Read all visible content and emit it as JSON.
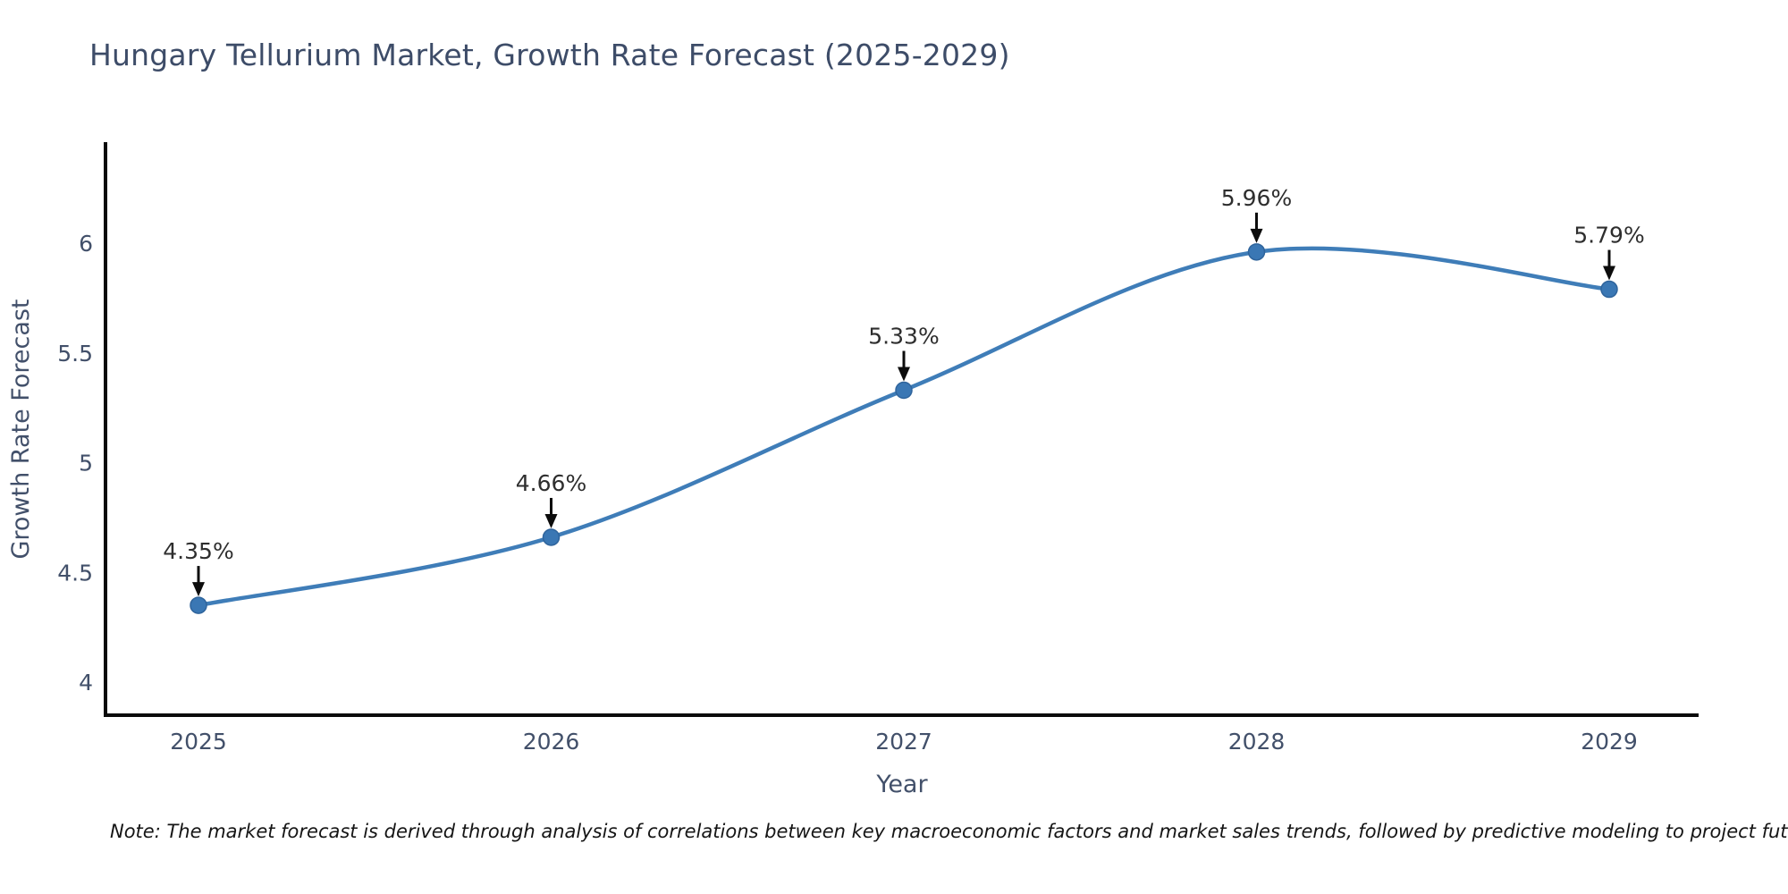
{
  "title": "Hungary Tellurium Market, Growth Rate Forecast (2025-2029)",
  "note": "Note: The market forecast is derived through analysis of correlations between key macroeconomic factors and market sales trends, followed by predictive modeling to project future sales",
  "chart_data": {
    "type": "line",
    "title": "Hungary Tellurium Market, Growth Rate Forecast (2025-2029)",
    "xlabel": "Year",
    "ylabel": "Growth Rate Forecast",
    "x": [
      2025,
      2026,
      2027,
      2028,
      2029
    ],
    "categories": [
      "2025",
      "2026",
      "2027",
      "2028",
      "2029"
    ],
    "series": [
      {
        "name": "Growth Rate Forecast",
        "values": [
          4.35,
          4.66,
          5.33,
          5.96,
          5.79
        ]
      }
    ],
    "point_labels": [
      "4.35%",
      "4.66%",
      "5.33%",
      "5.96%",
      "5.79%"
    ],
    "yticks": [
      4,
      4.5,
      5,
      5.5,
      6
    ],
    "ylim": [
      3.85,
      6.46
    ],
    "xlim": [
      2024.74,
      2029.25
    ],
    "grid": false,
    "legend": false,
    "curve": "spline",
    "line_color": "#3f7db8",
    "marker_color": "#3a77b4",
    "marker_edge_color": "#2f649c",
    "annotation_arrow_color": "#0c0c0c",
    "axis_line_color": "#0a0a0a",
    "text_color": "#42506a"
  }
}
